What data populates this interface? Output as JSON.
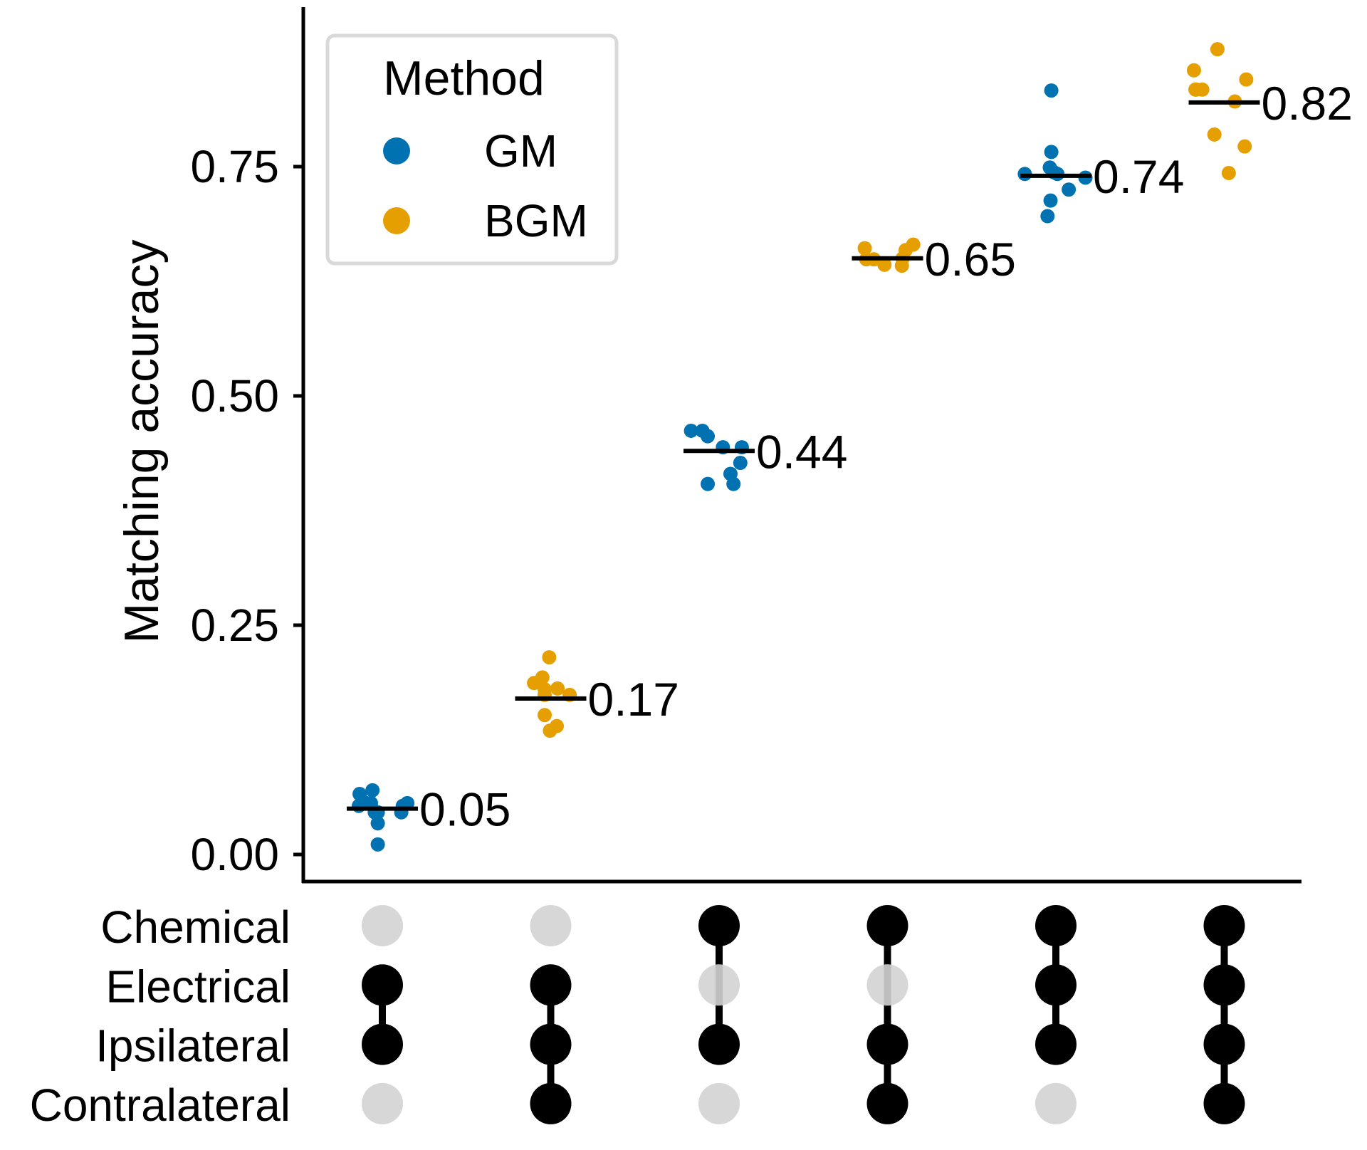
{
  "chart_data": {
    "type": "scatter",
    "title": "",
    "xlabel": "",
    "ylabel": "Matching accuracy",
    "ylim": [
      -0.03,
      0.92
    ],
    "yticks": [
      0.0,
      0.25,
      0.5,
      0.75
    ],
    "ytick_labels": [
      "0.00",
      "0.25",
      "0.50",
      "0.75"
    ],
    "grid": false,
    "legend": {
      "title": "Method",
      "position": "top-left",
      "entries": [
        {
          "name": "GM",
          "color": "#0072B2"
        },
        {
          "name": "BGM",
          "color": "#E69F00"
        }
      ]
    },
    "sets": [
      "Chemical",
      "Electrical",
      "Ipsilateral",
      "Contralateral"
    ],
    "active_color": "#000000",
    "inactive_color": "#D3D3D3",
    "groups": [
      {
        "method": "GM",
        "median": 0.05,
        "median_label": "0.05",
        "sets_active": [
          false,
          true,
          true,
          false
        ],
        "points": [
          {
            "dx": -0.3,
            "y": 0.066
          },
          {
            "dx": -0.13,
            "y": 0.07
          },
          {
            "dx": -0.26,
            "y": 0.058
          },
          {
            "dx": -0.21,
            "y": 0.056
          },
          {
            "dx": -0.15,
            "y": 0.056
          },
          {
            "dx": -0.31,
            "y": 0.053
          },
          {
            "dx": -0.06,
            "y": 0.046
          },
          {
            "dx": -0.1,
            "y": 0.046
          },
          {
            "dx": 0.27,
            "y": 0.053
          },
          {
            "dx": 0.33,
            "y": 0.056
          },
          {
            "dx": 0.25,
            "y": 0.046
          },
          {
            "dx": -0.06,
            "y": 0.034
          },
          {
            "dx": -0.06,
            "y": 0.011
          }
        ]
      },
      {
        "method": "BGM",
        "median": 0.17,
        "median_label": "0.17",
        "sets_active": [
          false,
          true,
          true,
          true
        ],
        "points": [
          {
            "dx": -0.02,
            "y": 0.215
          },
          {
            "dx": -0.11,
            "y": 0.193
          },
          {
            "dx": -0.22,
            "y": 0.187
          },
          {
            "dx": -0.08,
            "y": 0.18
          },
          {
            "dx": 0.09,
            "y": 0.181
          },
          {
            "dx": -0.08,
            "y": 0.174
          },
          {
            "dx": 0.25,
            "y": 0.174
          },
          {
            "dx": -0.08,
            "y": 0.152
          },
          {
            "dx": 0.08,
            "y": 0.14
          },
          {
            "dx": -0.01,
            "y": 0.135
          }
        ]
      },
      {
        "method": "GM",
        "median": 0.44,
        "median_label": "0.44",
        "sets_active": [
          true,
          false,
          true,
          false
        ],
        "points": [
          {
            "dx": -0.37,
            "y": 0.462
          },
          {
            "dx": -0.22,
            "y": 0.462
          },
          {
            "dx": -0.15,
            "y": 0.456
          },
          {
            "dx": 0.05,
            "y": 0.444
          },
          {
            "dx": 0.3,
            "y": 0.444
          },
          {
            "dx": 0.28,
            "y": 0.427
          },
          {
            "dx": 0.15,
            "y": 0.415
          },
          {
            "dx": -0.15,
            "y": 0.404
          },
          {
            "dx": 0.19,
            "y": 0.404
          }
        ]
      },
      {
        "method": "BGM",
        "median": 0.65,
        "median_label": "0.65",
        "sets_active": [
          true,
          false,
          true,
          true
        ],
        "points": [
          {
            "dx": -0.3,
            "y": 0.661
          },
          {
            "dx": 0.34,
            "y": 0.665
          },
          {
            "dx": 0.24,
            "y": 0.659
          },
          {
            "dx": -0.28,
            "y": 0.649
          },
          {
            "dx": -0.18,
            "y": 0.649
          },
          {
            "dx": 0.2,
            "y": 0.65
          },
          {
            "dx": -0.04,
            "y": 0.643
          },
          {
            "dx": 0.19,
            "y": 0.642
          }
        ]
      },
      {
        "method": "GM",
        "median": 0.74,
        "median_label": "0.74",
        "sets_active": [
          true,
          true,
          true,
          false
        ],
        "points": [
          {
            "dx": -0.06,
            "y": 0.833
          },
          {
            "dx": -0.06,
            "y": 0.766
          },
          {
            "dx": -0.08,
            "y": 0.749
          },
          {
            "dx": -0.03,
            "y": 0.744
          },
          {
            "dx": 0.02,
            "y": 0.742
          },
          {
            "dx": -0.41,
            "y": 0.742
          },
          {
            "dx": 0.39,
            "y": 0.738
          },
          {
            "dx": 0.17,
            "y": 0.725
          },
          {
            "dx": -0.07,
            "y": 0.713
          },
          {
            "dx": -0.11,
            "y": 0.696
          }
        ]
      },
      {
        "method": "BGM",
        "median": 0.82,
        "median_label": "0.82",
        "sets_active": [
          true,
          true,
          true,
          true
        ],
        "points": [
          {
            "dx": -0.09,
            "y": 0.878
          },
          {
            "dx": -0.4,
            "y": 0.855
          },
          {
            "dx": 0.29,
            "y": 0.845
          },
          {
            "dx": -0.37,
            "y": 0.834
          },
          {
            "dx": -0.29,
            "y": 0.834
          },
          {
            "dx": -0.38,
            "y": 0.834
          },
          {
            "dx": 0.14,
            "y": 0.821
          },
          {
            "dx": -0.13,
            "y": 0.785
          },
          {
            "dx": 0.27,
            "y": 0.772
          },
          {
            "dx": 0.06,
            "y": 0.743
          }
        ]
      }
    ]
  }
}
